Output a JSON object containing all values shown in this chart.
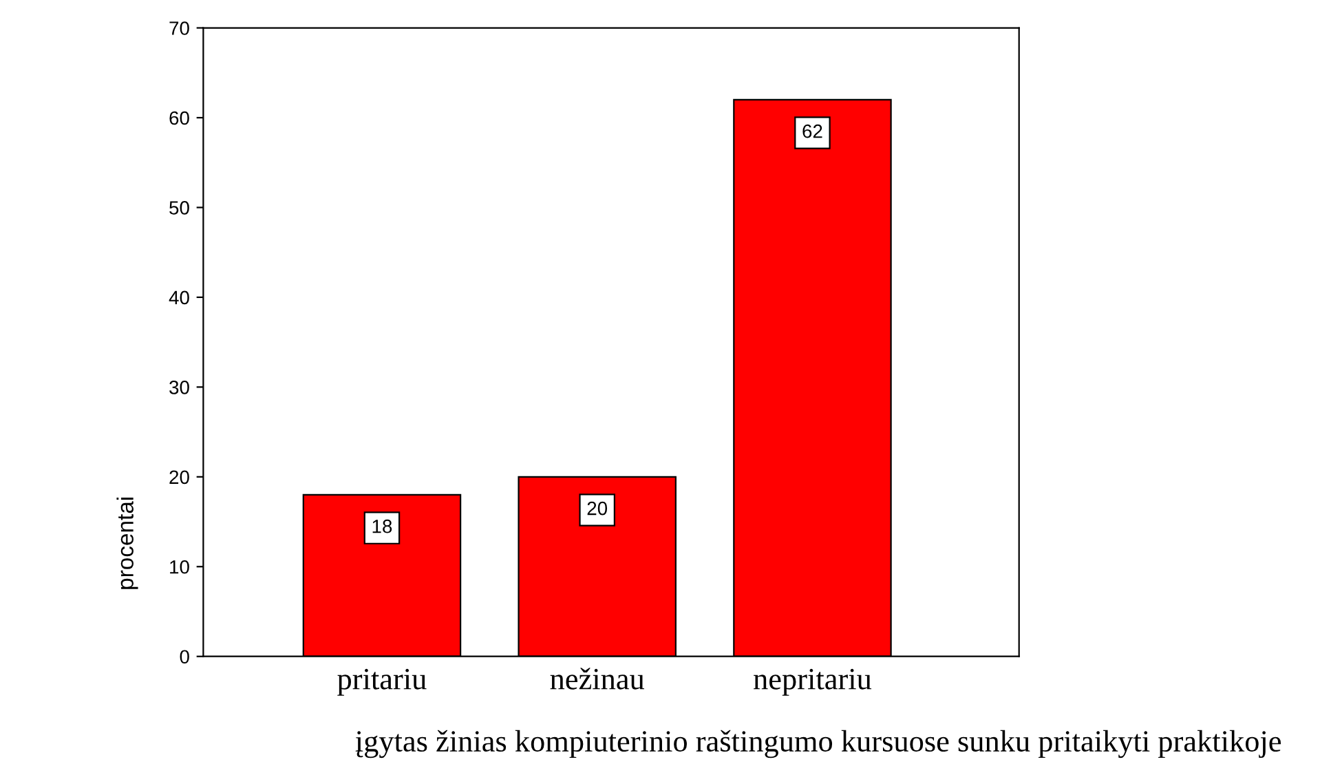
{
  "chart_data": {
    "type": "bar",
    "xlabel": "įgytas žinias kompiuterinio raštingumo kursuose sunku pritaikyti praktikoje",
    "ylabel": "procentai",
    "categories": [
      "pritariu",
      "nežinau",
      "nepritariu"
    ],
    "values": [
      18,
      20,
      62
    ],
    "color": "#ff0000",
    "ylim": [
      0,
      70
    ],
    "yticks": [
      0,
      10,
      20,
      30,
      40,
      50,
      60,
      70
    ],
    "grid": false,
    "legend": false,
    "data_labels": true
  }
}
